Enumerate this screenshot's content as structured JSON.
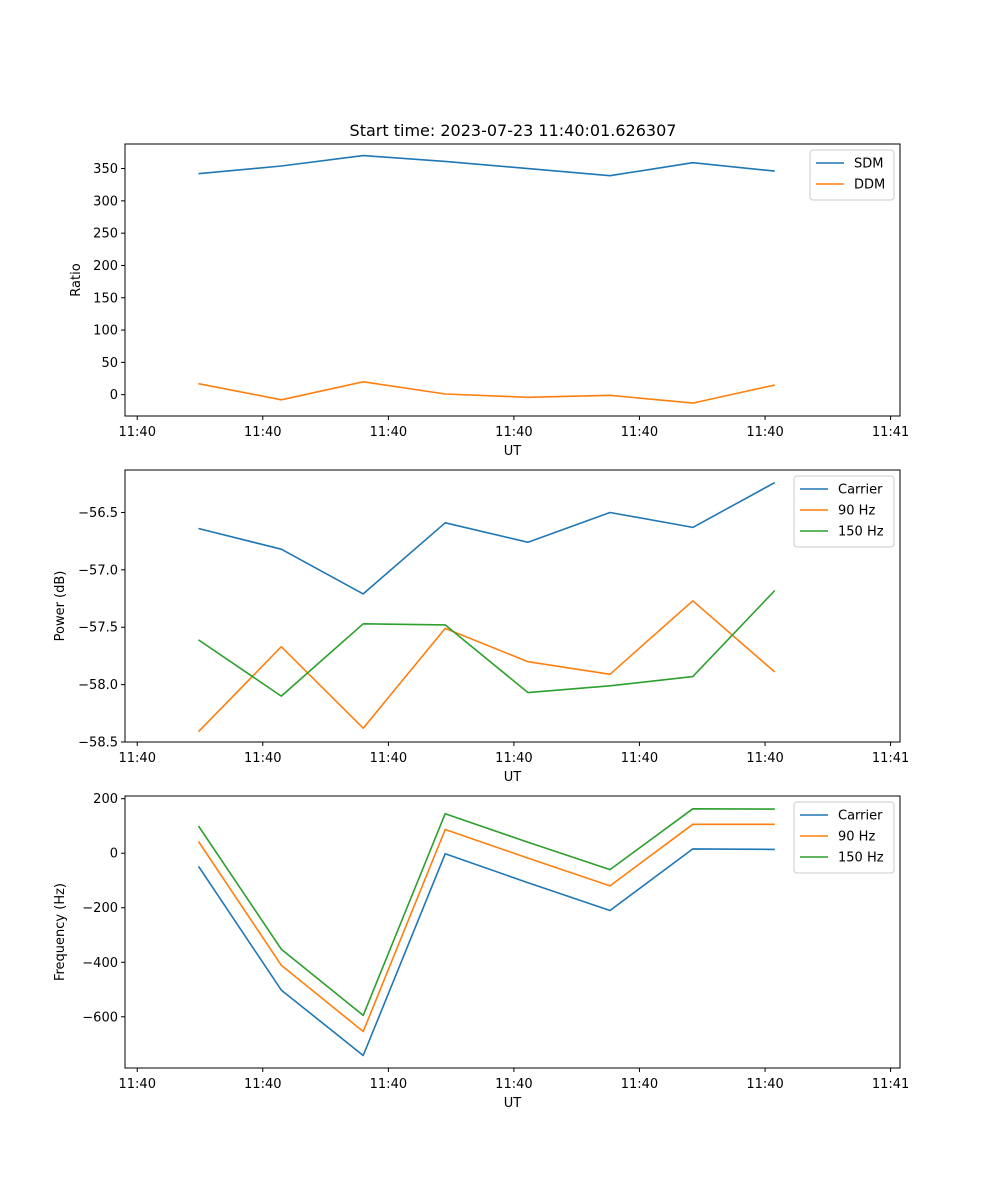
{
  "title": "Start time: 2023-07-23 11:40:01.626307",
  "x_tick_labels": [
    "11:40",
    "11:40",
    "11:40",
    "11:40",
    "11:40",
    "11:40",
    "11:41"
  ],
  "colors": {
    "blue": "#1f77b4",
    "orange": "#ff7f0e",
    "green": "#2ca02c"
  },
  "chart_data": [
    {
      "type": "line",
      "name": "ratio",
      "xlabel": "UT",
      "ylabel": "Ratio",
      "xlim": [
        -0.13,
        8.1
      ],
      "x_ticks": [
        0,
        1.333,
        2.667,
        4,
        5.333,
        6.667,
        8
      ],
      "ylim": [
        -33,
        388
      ],
      "y_ticks": [
        0,
        50,
        100,
        150,
        200,
        250,
        300,
        350
      ],
      "y_tick_labels": [
        "0",
        "50",
        "100",
        "150",
        "200",
        "250",
        "300",
        "350"
      ],
      "x": [
        0.65,
        1.53,
        2.4,
        3.27,
        4.15,
        5.02,
        5.9,
        6.77
      ],
      "series": [
        {
          "name": "SDM",
          "color": "#1f77b4",
          "values": [
            342,
            354,
            370,
            361,
            350,
            339,
            359,
            346
          ]
        },
        {
          "name": "DDM",
          "color": "#ff7f0e",
          "values": [
            17,
            -8,
            20,
            1,
            -4,
            -1,
            -13,
            15
          ]
        }
      ],
      "legend": "top-right"
    },
    {
      "type": "line",
      "name": "power",
      "xlabel": "UT",
      "ylabel": "Power (dB)",
      "xlim": [
        -0.13,
        8.1
      ],
      "x_ticks": [
        0,
        1.333,
        2.667,
        4,
        5.333,
        6.667,
        8
      ],
      "ylim": [
        -58.5,
        -56.13
      ],
      "y_ticks": [
        -58.5,
        -58.0,
        -57.5,
        -57.0,
        -56.5
      ],
      "y_tick_labels": [
        "−58.5",
        "−58.0",
        "−57.5",
        "−57.0",
        "−56.5"
      ],
      "x": [
        0.65,
        1.53,
        2.4,
        3.27,
        4.15,
        5.02,
        5.9,
        6.77
      ],
      "series": [
        {
          "name": "Carrier",
          "color": "#1f77b4",
          "values": [
            -56.64,
            -56.82,
            -57.21,
            -56.59,
            -56.76,
            -56.5,
            -56.63,
            -56.24
          ]
        },
        {
          "name": "90 Hz",
          "color": "#ff7f0e",
          "values": [
            -58.41,
            -57.67,
            -58.38,
            -57.51,
            -57.8,
            -57.91,
            -57.27,
            -57.89
          ]
        },
        {
          "name": "150 Hz",
          "color": "#2ca02c",
          "values": [
            -57.61,
            -58.1,
            -57.47,
            -57.48,
            -58.07,
            -58.01,
            -57.93,
            -57.18
          ]
        }
      ],
      "legend": "top-right"
    },
    {
      "type": "line",
      "name": "frequency",
      "xlabel": "UT",
      "ylabel": "Frequency (Hz)",
      "xlim": [
        -0.13,
        8.1
      ],
      "x_ticks": [
        0,
        1.333,
        2.667,
        4,
        5.333,
        6.667,
        8
      ],
      "ylim": [
        -788,
        210
      ],
      "y_ticks": [
        -600,
        -400,
        -200,
        0,
        200
      ],
      "y_tick_labels": [
        "−600",
        "−400",
        "−200",
        "0",
        "200"
      ],
      "x": [
        0.65,
        1.53,
        2.4,
        3.27,
        4.15,
        5.02,
        5.9,
        6.77
      ],
      "series": [
        {
          "name": "Carrier",
          "color": "#1f77b4",
          "values": [
            -48,
            -502,
            -742,
            -2,
            -108,
            -210,
            16,
            14
          ]
        },
        {
          "name": "90 Hz",
          "color": "#ff7f0e",
          "values": [
            43,
            -411,
            -654,
            87,
            -18,
            -120,
            106,
            106
          ]
        },
        {
          "name": "150 Hz",
          "color": "#2ca02c",
          "values": [
            100,
            -352,
            -595,
            145,
            40,
            -60,
            163,
            162
          ]
        }
      ],
      "legend": "top-right"
    }
  ]
}
